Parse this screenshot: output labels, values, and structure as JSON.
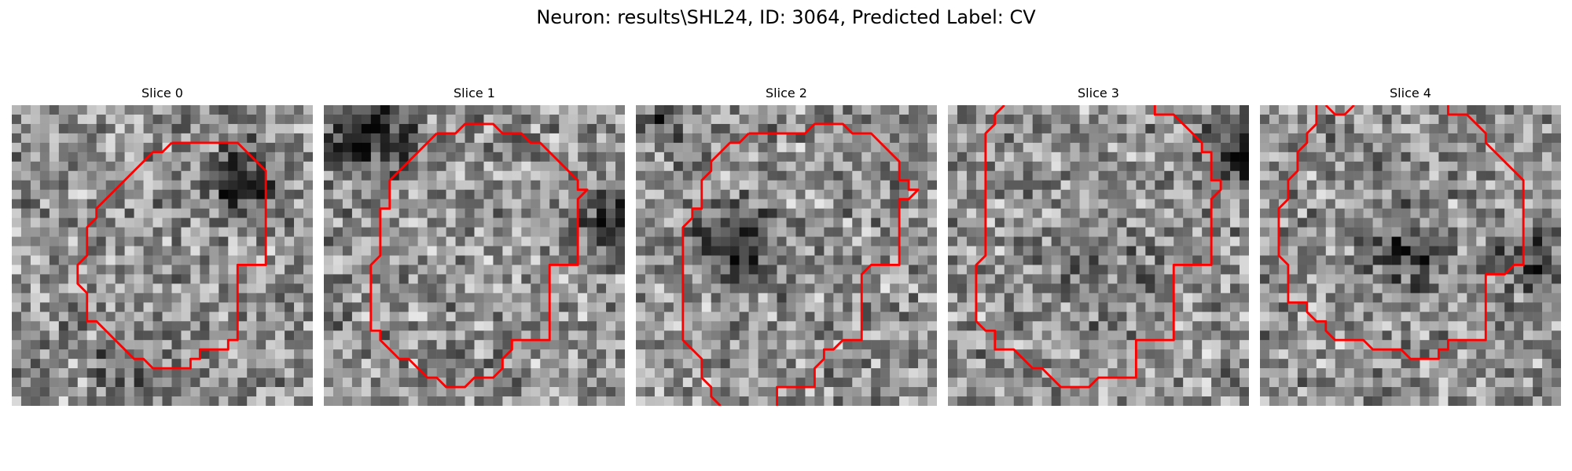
{
  "figure": {
    "title": "Neuron: results\\SHL24, ID: 3064, Predicted Label: CV"
  },
  "panels": [
    {
      "title": "Slice 0"
    },
    {
      "title": "Slice 1"
    },
    {
      "title": "Slice 2"
    },
    {
      "title": "Slice 3"
    },
    {
      "title": "Slice 4"
    }
  ],
  "colors": {
    "contour": "#ff0000",
    "background": "#ffffff",
    "text": "#000000"
  },
  "image": {
    "colormap": "gray",
    "grid": [
      32,
      32
    ]
  }
}
